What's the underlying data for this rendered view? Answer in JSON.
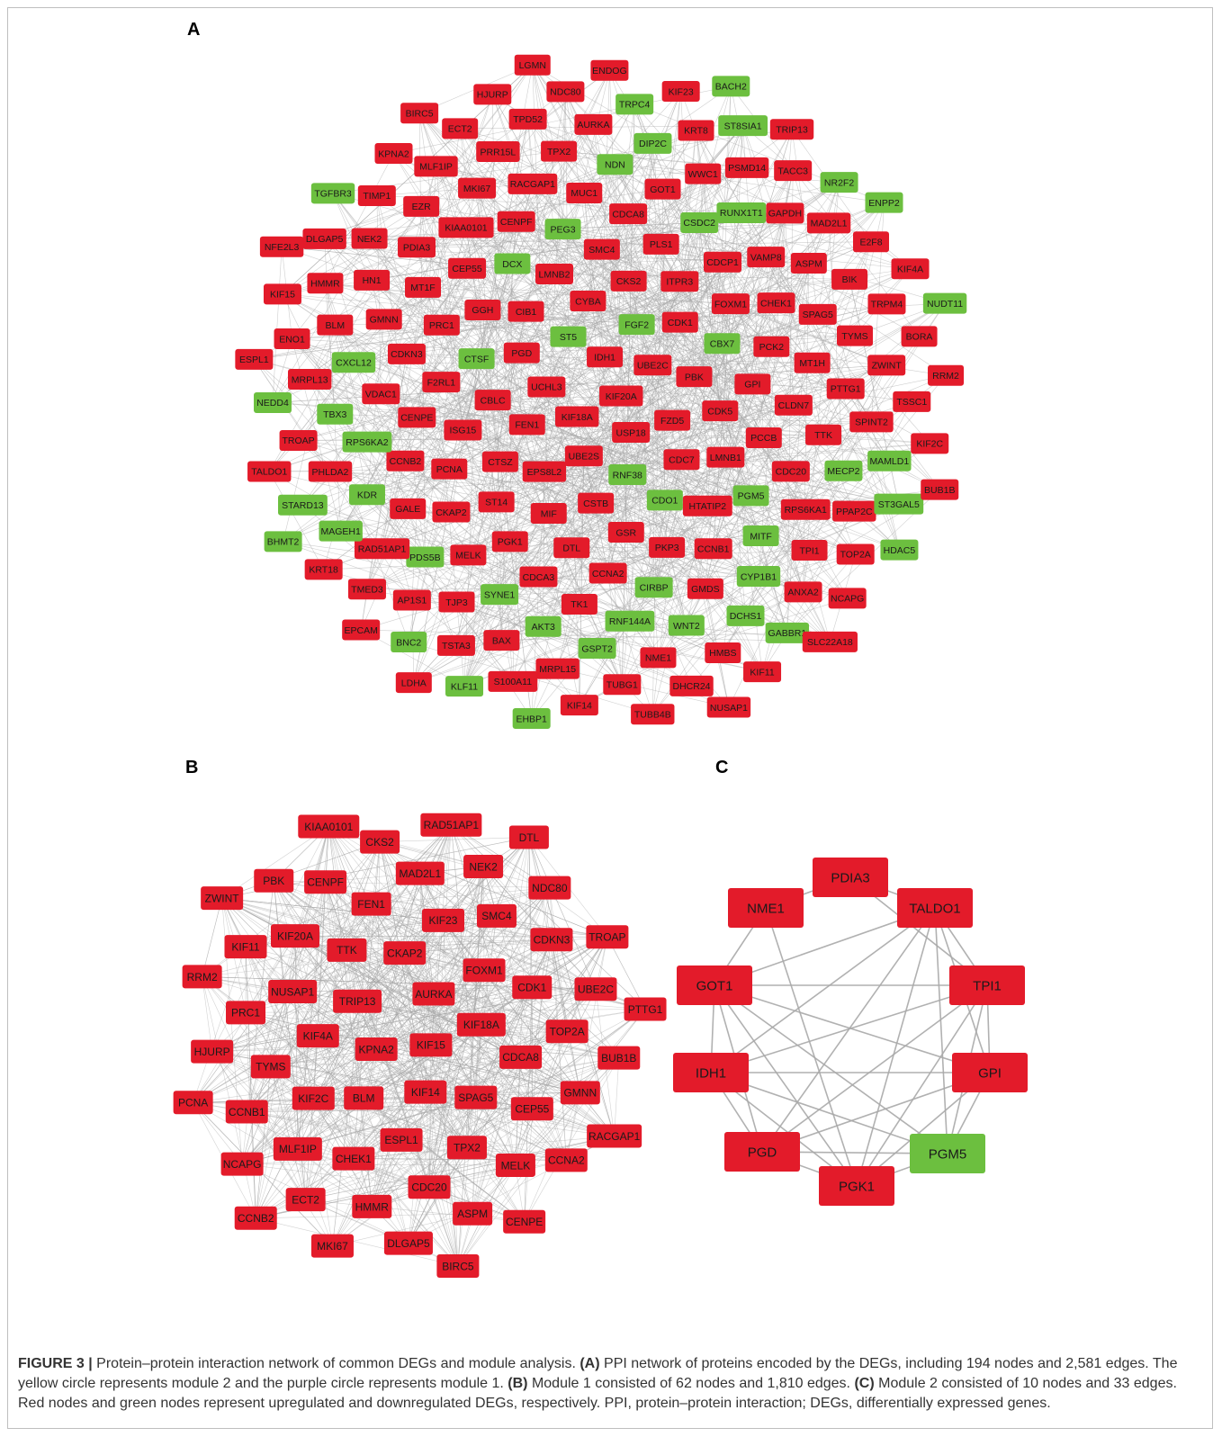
{
  "panels": {
    "A": {
      "label": "A",
      "red": [
        "USP18",
        "ENO1",
        "LDHA",
        "UCHL3",
        "PCCB",
        "DHCR24",
        "TALDO1",
        "PDIA3",
        "GALE",
        "HMBS",
        "MT1F",
        "MT1H",
        "FZD5",
        "HTATIP2",
        "HJURP",
        "ISG15",
        "E2F8",
        "MELK",
        "F2RL1",
        "AP1S1",
        "TRPM4",
        "BLM",
        "LMNB2",
        "FOXM1",
        "S100A11",
        "BIK",
        "VDAC1",
        "LMNB1",
        "KIF14",
        "PCNA",
        "KPNA2",
        "CENPE",
        "KIF20A",
        "CYBA",
        "MRPL13",
        "TSTA3",
        "TK1",
        "RRM2",
        "CDCP1",
        "GOT1",
        "TRIP13",
        "PGD",
        "GAPDH",
        "BIRC5",
        "GSR",
        "KIF18A",
        "ST14",
        "EZR",
        "GMDS",
        "EPCAM",
        "NME1",
        "BUB1B",
        "CDC7",
        "VAMP8",
        "NEK2",
        "TYMS",
        "AURKA",
        "ANXA2",
        "KIF2C",
        "TPD52",
        "SPINT2",
        "ENDOG",
        "CCNA2",
        "ZWINT",
        "CEP55",
        "MIF",
        "CBLC",
        "PBK",
        "HN1",
        "KIAA0101",
        "FEN1",
        "TOP2A",
        "RAD51AP1",
        "CDK1",
        "CLDN7",
        "KRT18",
        "EPS8L2",
        "PLS1",
        "CKAP2",
        "BORA",
        "TROAP",
        "MAD2L1",
        "HMMR",
        "PKP3",
        "WWC1",
        "BAX",
        "CSTB",
        "CDCA8",
        "TACC3",
        "PRC1",
        "CCNB1",
        "CDKN3",
        "CIB1",
        "TJP3",
        "NUSAP1",
        "MKI67",
        "SMC4",
        "CHEK1",
        "MUC1",
        "LGMN",
        "CDCA3",
        "TUBG1",
        "CENPF",
        "GMNN",
        "ECT2",
        "PRR15L",
        "MRPL15",
        "NDC80",
        "RACGAP1",
        "NCAPG",
        "PTTG1",
        "RPS6KA1",
        "KRT8",
        "PPAP2C",
        "CDK5",
        "TPX2",
        "NFE2L3",
        "CTSZ",
        "UBE2C",
        "DTL",
        "SPAG5",
        "TIMP1",
        "KIF23",
        "PHLDA2",
        "SLC22A18",
        "TSSC1",
        "TUBB4B",
        "TTK",
        "CDC20",
        "GGH",
        "KIF11",
        "UBE2S",
        "ASPM",
        "KIF15",
        "CKS2",
        "MLF1IP",
        "DLGAP5",
        "KIF4A",
        "ESPL1",
        "CCNB2",
        "PSMD14",
        "GPI",
        "ITPR3",
        "TMED3",
        "PCK2",
        "TPI1",
        "IDH1",
        "PGK1"
      ],
      "green": [
        "NEDD4",
        "KDR",
        "RPS6KA2",
        "BHMT2",
        "TGFBR3",
        "ENPP2",
        "FGF2",
        "PEG3",
        "DIP2C",
        "DCX",
        "HDAC5",
        "CDO1",
        "CYP1B1",
        "GABBR1",
        "RNF38",
        "KLF11",
        "NUDT11",
        "NDN",
        "CXCL12",
        "NR2F2",
        "ST5",
        "TRPC4",
        "RUNX1T1",
        "CTSF",
        "AKT3",
        "PGM5",
        "EHBP1",
        "MITF",
        "MAMLD1",
        "BNC2",
        "SYNE1",
        "MECP2",
        "RNF144A",
        "PDS5B",
        "BACH2",
        "MAGEH1",
        "DCHS1",
        "CSDC2",
        "TBX3",
        "CBX7",
        "CIRBP",
        "ST3GAL5",
        "STARD13",
        "WNT2",
        "ST8SIA1",
        "GSPT2"
      ]
    },
    "B": {
      "label": "B",
      "nodes": [
        "KIF15",
        "KPNA2",
        "AURKA",
        "KIF14",
        "TRIP13",
        "KIF18A",
        "BLM",
        "CKAP2",
        "SPAG5",
        "KIF4A",
        "FOXM1",
        "ESPL1",
        "TTK",
        "CDCA8",
        "KIF2C",
        "KIF23",
        "TPX2",
        "NUSAP1",
        "CDK1",
        "CHEK1",
        "FEN1",
        "CEP55",
        "TYMS",
        "SMC4",
        "CDC20",
        "KIF20A",
        "TOP2A",
        "MLF1IP",
        "MAD2L1",
        "MELK",
        "PRC1",
        "CDKN3",
        "HMMR",
        "CENPF",
        "GMNN",
        "CCNB1",
        "NEK2",
        "ASPM",
        "KIF11",
        "UBE2C",
        "ECT2",
        "CKS2",
        "CCNA2",
        "HJURP",
        "NDC80",
        "DLGAP5",
        "PBK",
        "BUB1B",
        "NCAPG",
        "RAD51AP1",
        "CENPE",
        "RRM2",
        "TROAP",
        "MKI67",
        "KIAA0101",
        "RACGAP1",
        "PCNA",
        "DTL",
        "BIRC5",
        "ZWINT",
        "PTTG1",
        "CCNB2"
      ]
    },
    "C": {
      "label": "C",
      "nodes": [
        {
          "name": "PDIA3",
          "status": "up"
        },
        {
          "name": "NME1",
          "status": "up"
        },
        {
          "name": "TALDO1",
          "status": "up"
        },
        {
          "name": "GOT1",
          "status": "up"
        },
        {
          "name": "TPI1",
          "status": "up"
        },
        {
          "name": "IDH1",
          "status": "up"
        },
        {
          "name": "GPI",
          "status": "up"
        },
        {
          "name": "PGD",
          "status": "up"
        },
        {
          "name": "PGM5",
          "status": "down"
        },
        {
          "name": "PGK1",
          "status": "up"
        }
      ]
    }
  },
  "colors": {
    "up": "#e31b2a",
    "down": "#6cbf3f",
    "edge": "#a8a8a8"
  },
  "caption": {
    "figure_label": "FIGURE 3 |",
    "intro": "Protein–protein interaction network of common DEGs and module analysis.",
    "a_label": "(A)",
    "a_text": "PPI network of proteins encoded by the DEGs, including 194 nodes and 2,581 edges. The yellow circle represents module 2 and the purple circle represents module 1.",
    "b_label": "(B)",
    "b_text": "Module 1 consisted of 62 nodes and 1,810 edges.",
    "c_label": "(C)",
    "c_text": "Module 2 consisted of 10 nodes and 33 edges. Red nodes and green nodes represent upregulated and downregulated DEGs, respectively. PPI, protein–protein interaction; DEGs, differentially expressed genes."
  }
}
